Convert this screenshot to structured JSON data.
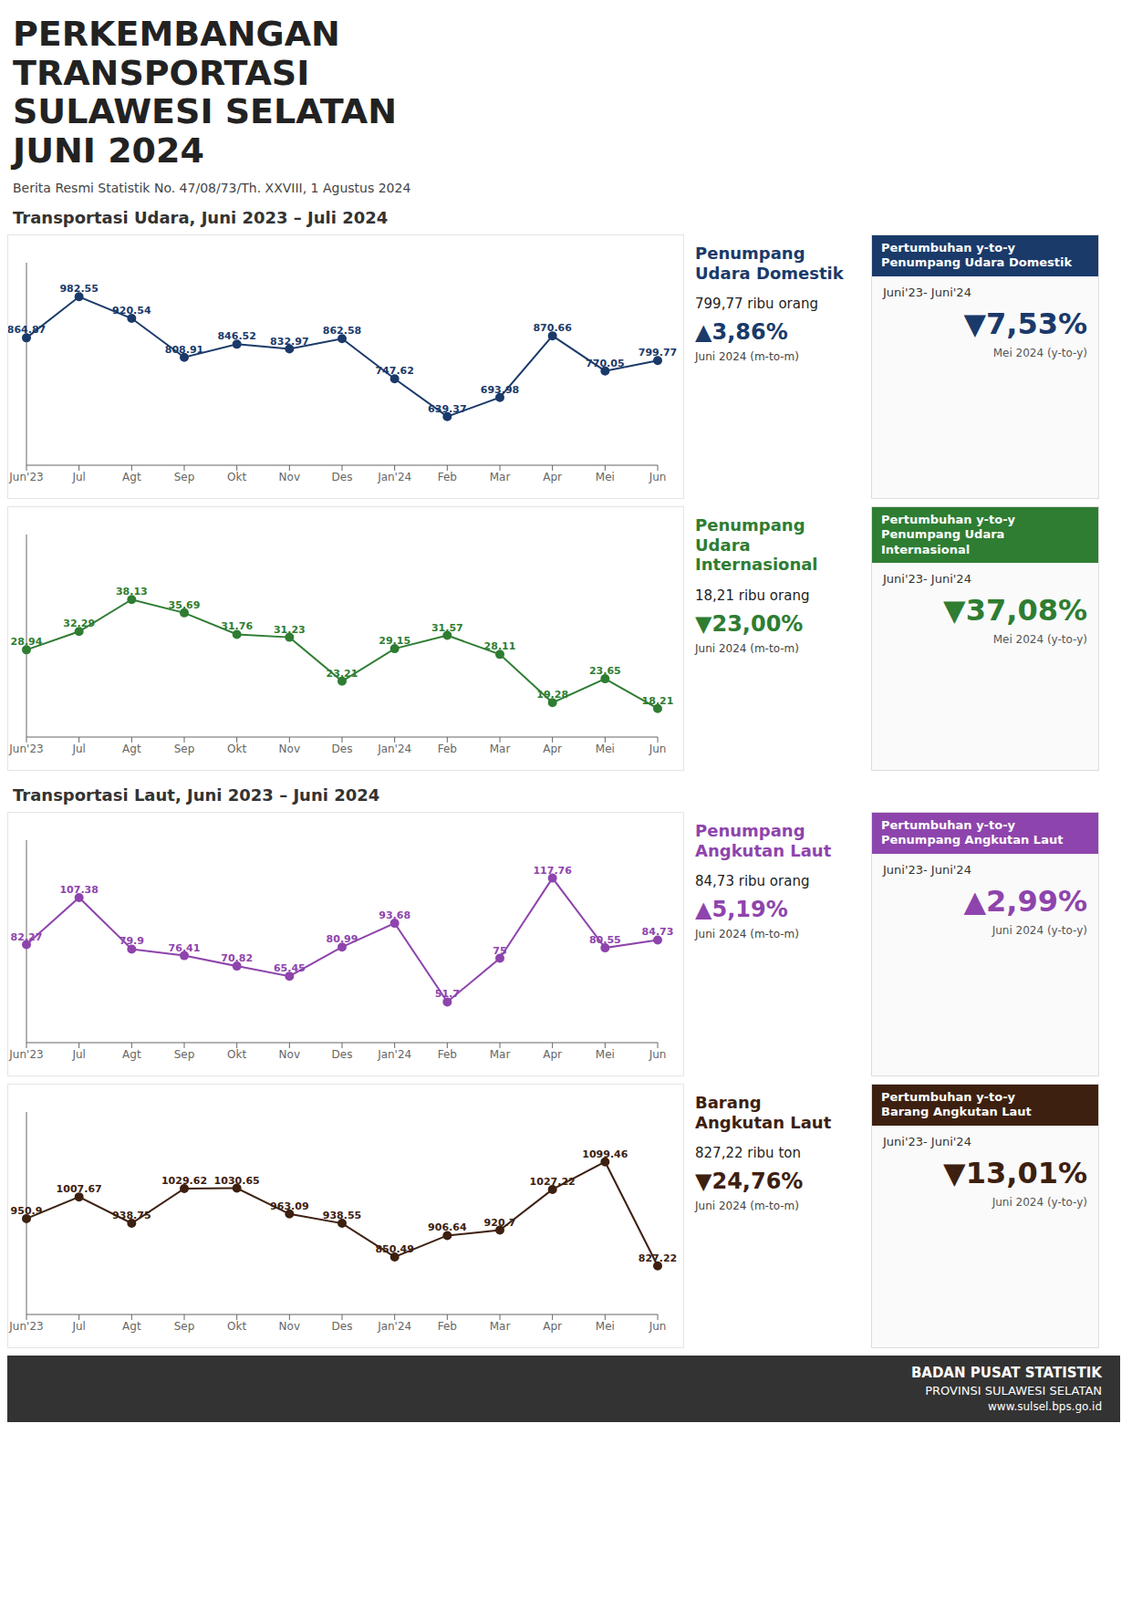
{
  "title": "PERKEMBANGAN\nTRANSPORTASI\nSULAWESI SELATAN\nJUNI 2024",
  "subtitle": "Berita Resmi Statistik No. 47/08/73/Th. XXVIII, 1 Agustus 2024",
  "annotations": [
    "Transportasi Udara, Juni 2023 – Juli 2024",
    "Transportasi Laut, Juni 2023 – Juni 2024",
    "BADAN PUSAT STATISTIK",
    "PROVINSI SULAWESI SELATAN",
    "www.sulsel.bps.go.id"
  ],
  "chart_data": [
    {
      "type": "line",
      "title": "Penumpang\nUdara Domestik",
      "categories": [
        "Jun'23",
        "Jul",
        "Agt",
        "Sep",
        "Okt",
        "Nov",
        "Des",
        "Jan'24",
        "Feb",
        "Mar",
        "Apr",
        "Mei",
        "Jun"
      ],
      "values": [
        864.87,
        982.55,
        920.54,
        808.91,
        846.52,
        832.97,
        862.58,
        747.62,
        639.37,
        693.98,
        870.66,
        770.05,
        799.77
      ],
      "color": "#1a3a6a",
      "ylim": [
        500,
        1080
      ],
      "data_labels": true,
      "tick_labels": "x",
      "grid": false,
      "annotations": [
        "799,77 ribu orang",
        "▲3,86%",
        "Juni 2024 (m-to-m)",
        "Pertumbuhan y-to-y\nPenumpang Udara Domestik",
        "Juni'23- Juni'24",
        "▼7,53%",
        "Mei 2024 (y-to-y)"
      ]
    },
    {
      "type": "line",
      "title": "Penumpang\nUdara Internasional",
      "categories": [
        "Jun'23",
        "Jul",
        "Agt",
        "Sep",
        "Okt",
        "Nov",
        "Des",
        "Jan'24",
        "Feb",
        "Mar",
        "Apr",
        "Mei",
        "Jun"
      ],
      "values": [
        28.94,
        32.29,
        38.13,
        35.69,
        31.76,
        31.23,
        23.21,
        29.15,
        31.57,
        28.11,
        19.28,
        23.65,
        18.21
      ],
      "color": "#2e7d32",
      "ylim": [
        13,
        50
      ],
      "data_labels": true,
      "tick_labels": "x",
      "grid": false,
      "annotations": [
        "18,21 ribu orang",
        "▼23,00%",
        "Juni 2024 (m-to-m)",
        "Pertumbuhan y-to-y\nPenumpang Udara\nInternasional",
        "Juni'23- Juni'24",
        "▼37,08%",
        "Mei 2024 (y-to-y)"
      ]
    },
    {
      "type": "line",
      "title": "Penumpang\nAngkutan Laut",
      "categories": [
        "Jun'23",
        "Jul",
        "Agt",
        "Sep",
        "Okt",
        "Nov",
        "Des",
        "Jan'24",
        "Feb",
        "Mar",
        "Apr",
        "Mei",
        "Jun"
      ],
      "values": [
        82.27,
        107.38,
        79.9,
        76.41,
        70.82,
        65.45,
        80.99,
        93.68,
        51.7,
        75.0,
        117.76,
        80.55,
        84.73
      ],
      "color": "#8e44ad",
      "ylim": [
        30,
        138
      ],
      "data_labels": true,
      "tick_labels": "x",
      "grid": false,
      "annotations": [
        "84,73 ribu orang",
        "▲5,19%",
        "Juni 2024 (m-to-m)",
        "Pertumbuhan y-to-y\nPenumpang Angkutan Laut",
        "Juni'23- Juni'24",
        "▲2,99%",
        "Juni 2024 (y-to-y)"
      ]
    },
    {
      "type": "line",
      "title": "Barang\nAngkutan Laut",
      "categories": [
        "Jun'23",
        "Jul",
        "Agt",
        "Sep",
        "Okt",
        "Nov",
        "Des",
        "Jan'24",
        "Feb",
        "Mar",
        "Apr",
        "Mei",
        "Jun"
      ],
      "values": [
        950.9,
        1007.67,
        938.75,
        1029.62,
        1030.65,
        963.09,
        938.55,
        850.49,
        906.64,
        920.7,
        1027.22,
        1099.46,
        827.22
      ],
      "color": "#3d2010",
      "ylim": [
        700,
        1230
      ],
      "data_labels": true,
      "tick_labels": "x",
      "grid": false,
      "annotations": [
        "827,22 ribu ton",
        "▼24,76%",
        "Juni 2024 (m-to-m)",
        "Pertumbuhan y-to-y\nBarang Angkutan Laut",
        "Juni'23- Juni'24",
        "▼13,01%",
        "Juni 2024 (y-to-y)"
      ]
    }
  ]
}
